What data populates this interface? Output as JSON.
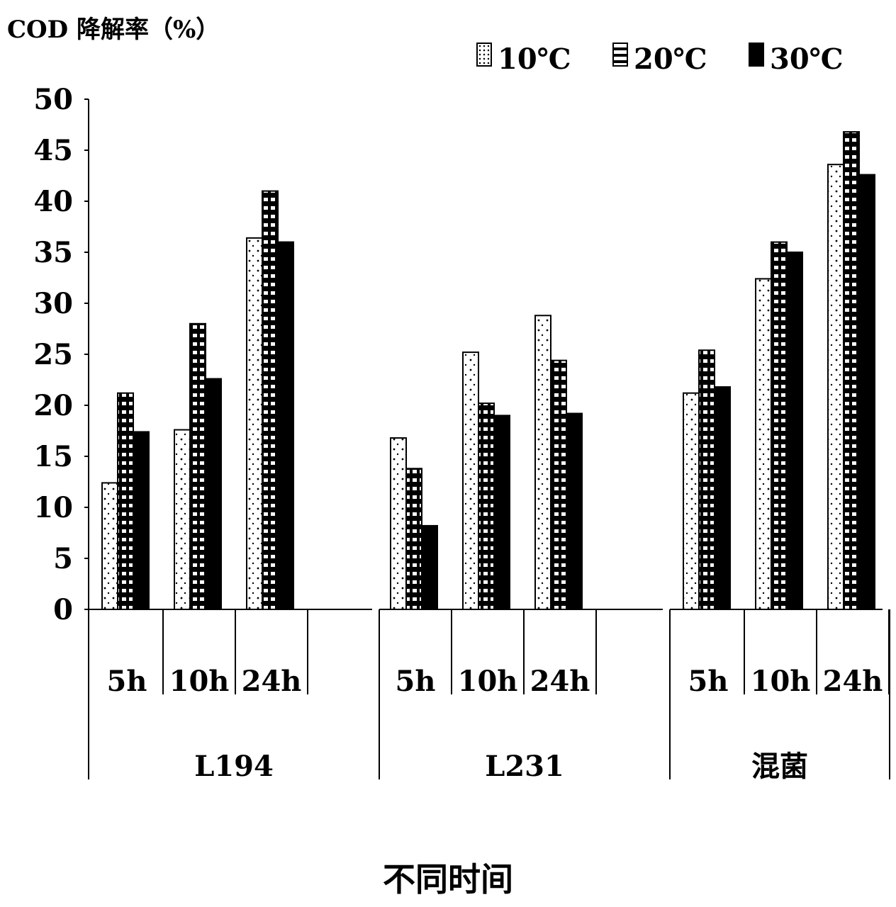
{
  "chart_data": {
    "type": "bar",
    "ylabel": "COD 降解率（%）",
    "xlabel": "不同时间",
    "ylim": [
      0,
      50
    ],
    "yticks": [
      0,
      5,
      10,
      15,
      20,
      25,
      30,
      35,
      40,
      45,
      50
    ],
    "groups": [
      {
        "name": "L194",
        "categories": [
          "5h",
          "10h",
          "24h"
        ]
      },
      {
        "name": "L231",
        "categories": [
          "5h",
          "10h",
          "24h"
        ]
      },
      {
        "name": "混菌",
        "categories": [
          "5h",
          "10h",
          "24h"
        ]
      }
    ],
    "series": [
      {
        "name": "10℃",
        "fill": "dotted",
        "color": "#ffffff",
        "values": [
          12.4,
          17.6,
          36.4,
          16.8,
          25.2,
          28.8,
          21.2,
          32.4,
          43.6
        ]
      },
      {
        "name": "20℃",
        "fill": "striped",
        "color": "#ffffff",
        "values": [
          21.2,
          28.0,
          41.0,
          13.8,
          20.2,
          24.4,
          25.4,
          36.0,
          46.8
        ]
      },
      {
        "name": "30℃",
        "fill": "solid",
        "color": "#000000",
        "values": [
          17.4,
          22.6,
          36.0,
          8.2,
          19.0,
          19.2,
          21.8,
          35.0,
          42.6
        ]
      }
    ],
    "legend_position": "top-right",
    "grid": false
  },
  "legend": {
    "items": [
      {
        "label": "10℃",
        "icon": "dotted-swatch"
      },
      {
        "label": "20℃",
        "icon": "striped-swatch"
      },
      {
        "label": "30℃",
        "icon": "solid-swatch"
      }
    ]
  }
}
